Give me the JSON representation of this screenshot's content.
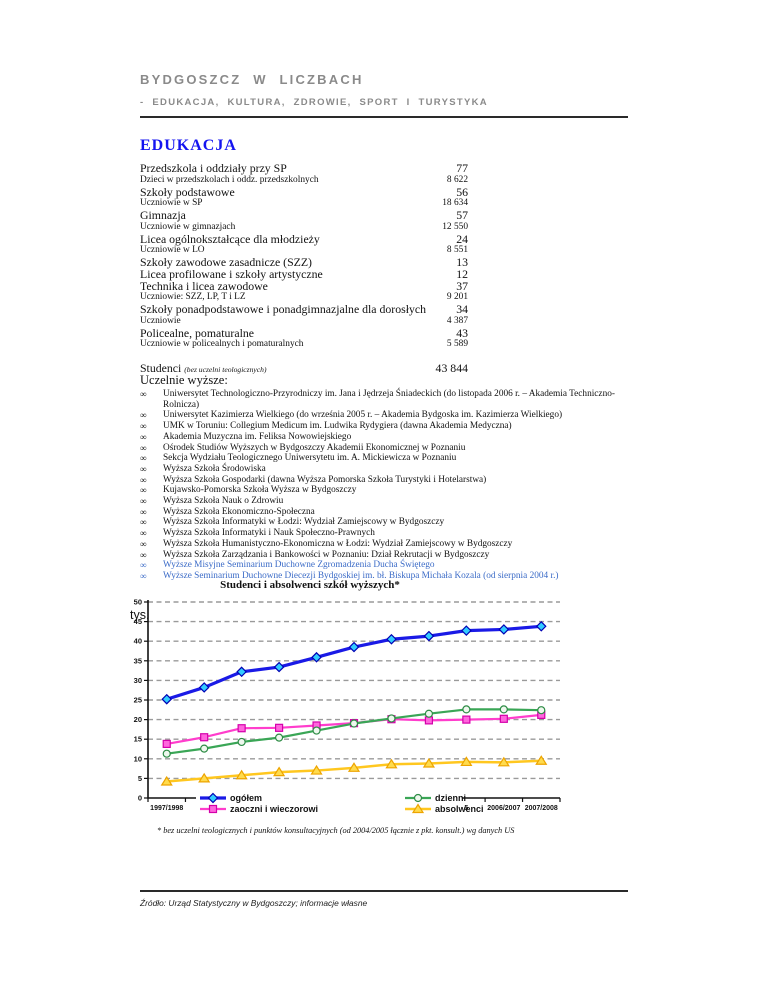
{
  "header": {
    "title": "BYDGOSZCZ W LICZBACH",
    "subtitle": "- EDUKACJA, KULTURA, ZDROWIE, SPORT I TURYSTYKA"
  },
  "section_title": "EDUKACJA",
  "stats": [
    {
      "label": "Przedszkola i oddziały przy SP",
      "value": "77",
      "emph": true
    },
    {
      "label": "Dzieci w przedszkolach i oddz. przedszkolnych",
      "value": "8 622",
      "emph": false
    },
    {
      "label": "Szkoły podstawowe",
      "value": "56",
      "emph": true
    },
    {
      "label": "Uczniowie w SP",
      "value": "18 634",
      "emph": false
    },
    {
      "label": "Gimnazja",
      "value": "57",
      "emph": true
    },
    {
      "label": "Uczniowie w gimnazjach",
      "value": "12 550",
      "emph": false
    },
    {
      "label": "Licea ogólnokształcące dla młodzieży",
      "value": "24",
      "emph": true
    },
    {
      "label": "Uczniowie w LO",
      "value": "8 551",
      "emph": false
    },
    {
      "label": "Szkoły zawodowe zasadnicze (SZZ)",
      "value": "13",
      "emph": true
    },
    {
      "label": "Licea profilowane i szkoły artystyczne",
      "value": "12",
      "emph": true
    },
    {
      "label": "Technika i licea zawodowe",
      "value": "37",
      "emph": true
    },
    {
      "label": "Uczniowie: SZZ, LP, T i LZ",
      "value": "9 201",
      "emph": false
    },
    {
      "label": "Szkoły ponadpodstawowe i ponadgimnazjalne dla dorosłych",
      "value": "34",
      "emph": true
    },
    {
      "label": "Uczniowie",
      "value": "4 387",
      "emph": false
    },
    {
      "label": "Policealne, pomaturalne",
      "value": "43",
      "emph": true
    },
    {
      "label": "Uczniowie w policealnych i pomaturalnych",
      "value": "5 589",
      "emph": false
    }
  ],
  "students": {
    "label": "Studenci",
    "note": "(bez uczelni teologicznych)",
    "value": "43 844"
  },
  "universities": {
    "heading": "Uczelnie wyższe:",
    "bullet": "∞",
    "items": [
      {
        "text": "Uniwersytet Technologiczno-Przyrodniczy im. Jana i Jędrzeja Śniadeckich (do listopada 2006 r. – Akademia Techniczno-Rolnicza)",
        "highlight": false
      },
      {
        "text": "Uniwersytet Kazimierza Wielkiego (do września 2005 r. – Akademia Bydgoska im. Kazimierza Wielkiego)",
        "highlight": false
      },
      {
        "text": "UMK w Toruniu: Collegium Medicum im. Ludwika Rydygiera (dawna Akademia Medyczna)",
        "highlight": false
      },
      {
        "text": "Akademia Muzyczna im. Feliksa Nowowiejskiego",
        "highlight": false
      },
      {
        "text": "Ośrodek Studiów Wyższych w Bydgoszczy Akademii Ekonomicznej w Poznaniu",
        "highlight": false
      },
      {
        "text": "Sekcja Wydziału Teologicznego Uniwersytetu im. A. Mickiewicza w Poznaniu",
        "highlight": false
      },
      {
        "text": "Wyższa Szkoła Środowiska",
        "highlight": false
      },
      {
        "text": "Wyższa Szkoła Gospodarki (dawna Wyższa Pomorska Szkoła Turystyki i Hotelarstwa)",
        "highlight": false
      },
      {
        "text": "Kujawsko-Pomorska Szkoła Wyższa w Bydgoszczy",
        "highlight": false
      },
      {
        "text": "Wyższa Szkoła Nauk o Zdrowiu",
        "highlight": false
      },
      {
        "text": "Wyższa Szkoła Ekonomiczno-Społeczna",
        "highlight": false
      },
      {
        "text": "Wyższa Szkoła Informatyki w Łodzi: Wydział Zamiejscowy w Bydgoszczy",
        "highlight": false
      },
      {
        "text": "Wyższa Szkoła Informatyki i Nauk Społeczno-Prawnych",
        "highlight": false
      },
      {
        "text": "Wyższa Szkoła Humanistyczno-Ekonomiczna w Łodzi: Wydział Zamiejscowy w Bydgoszczy",
        "highlight": false
      },
      {
        "text": "Wyższa Szkoła Zarządzania i Bankowości w Poznaniu: Dział Rekrutacji w Bydgoszczy",
        "highlight": false
      },
      {
        "text": "Wyższe Misyjne Seminarium Duchowne Zgromadzenia Ducha Świętego",
        "highlight": true
      },
      {
        "text": "Wyższe Seminarium Duchowne Diecezji Bydgoskiej im. bł. Biskupa Michała Kozala (od sierpnia 2004 r.)",
        "highlight": true
      }
    ]
  },
  "chart_data": {
    "type": "line",
    "title": "Studenci i absolwenci szkół wyższych*",
    "y_unit_label": "tys.",
    "ylim": [
      0,
      50
    ],
    "ytick_step": 5,
    "grid": "dashed-horizontal",
    "legend_position": "bottom-overlapping-axis",
    "x": [
      "1997/1998",
      "1998/1999",
      "1999/2000",
      "2000/2001",
      "2001/2002",
      "2002/2003",
      "2003/2004",
      "2004/2005",
      "2005/2006",
      "2006/2007",
      "2007/2008"
    ],
    "visible_x_labels": [
      {
        "index": 0,
        "text": "1997/1998"
      },
      {
        "index": 8,
        "text": "5"
      },
      {
        "index": 9,
        "text": "2006/2007"
      },
      {
        "index": 10,
        "text": "2007/2008"
      }
    ],
    "series": [
      {
        "name": "ogółem",
        "color": "#1a1ae6",
        "marker": "diamond",
        "marker_fill": "#33ccff",
        "marker_stroke": "#0000b4",
        "width": 3.2,
        "values": [
          25.2,
          28.2,
          32.2,
          33.4,
          35.9,
          38.5,
          40.5,
          41.3,
          42.7,
          43.0,
          43.8
        ]
      },
      {
        "name": "zaoczni i wieczorowi",
        "color": "#ff3dcc",
        "marker": "square",
        "marker_fill": "#ff66dd",
        "marker_stroke": "#d400aa",
        "width": 2.2,
        "values": [
          13.8,
          15.5,
          17.8,
          17.9,
          18.5,
          19.1,
          20.1,
          19.8,
          20.0,
          20.2,
          21.2
        ]
      },
      {
        "name": "dzienni",
        "color": "#3aa656",
        "marker": "circle",
        "marker_fill": "#eef8ee",
        "marker_stroke": "#2e8c46",
        "width": 2.2,
        "values": [
          11.3,
          12.6,
          14.3,
          15.4,
          17.2,
          19.0,
          20.3,
          21.5,
          22.6,
          22.6,
          22.4
        ]
      },
      {
        "name": "absolwenci",
        "color": "#ffc71f",
        "marker": "triangle",
        "marker_fill": "#ffdb4d",
        "marker_stroke": "#eda400",
        "width": 2.5,
        "values": [
          4.2,
          5.0,
          5.8,
          6.6,
          7.0,
          7.7,
          8.6,
          8.8,
          9.2,
          9.1,
          9.5
        ]
      }
    ],
    "legend_order": [
      [
        "ogółem",
        "dzienni"
      ],
      [
        "zaoczni i wieczorowi",
        "absolwenci"
      ]
    ],
    "footnote": "* bez uczelni teologicznych i punktów konsultacyjnych (od 2004/2005 łącznie z pkt. konsult.) wg danych US"
  },
  "footer": {
    "source": "Źródło: Urząd Statystyczny w Bydgoszczy; informacje własne"
  }
}
